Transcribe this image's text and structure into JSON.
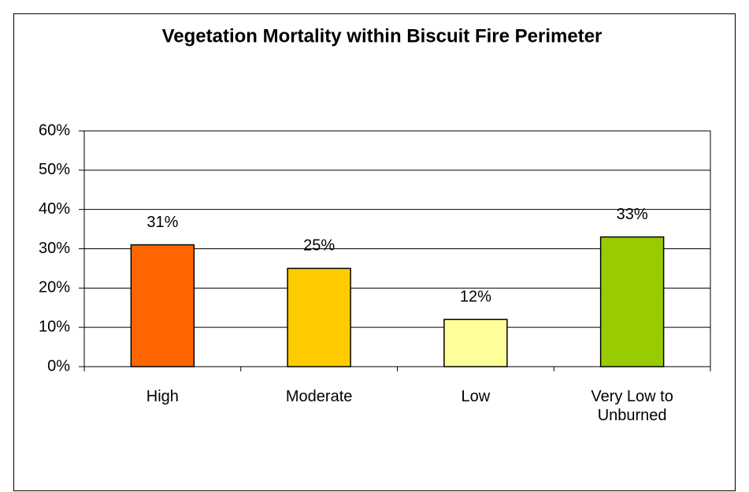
{
  "chart_data": {
    "type": "bar",
    "title": "Vegetation Mortality within Biscuit Fire Perimeter",
    "categories": [
      "High",
      "Moderate",
      "Low",
      "Very Low to Unburned"
    ],
    "values": [
      31,
      25,
      12,
      33
    ],
    "value_labels": [
      "31%",
      "25%",
      "12%",
      "33%"
    ],
    "colors": [
      "#ff6600",
      "#ffcc00",
      "#ffff99",
      "#99cc00"
    ],
    "ylim": [
      0,
      60
    ],
    "yticks": [
      {
        "value": 0,
        "label": "0%"
      },
      {
        "value": 10,
        "label": "10%"
      },
      {
        "value": 20,
        "label": "20%"
      },
      {
        "value": 30,
        "label": "30%"
      },
      {
        "value": 40,
        "label": "40%"
      },
      {
        "value": 50,
        "label": "50%"
      },
      {
        "value": 60,
        "label": "60%"
      }
    ],
    "grid": true
  }
}
